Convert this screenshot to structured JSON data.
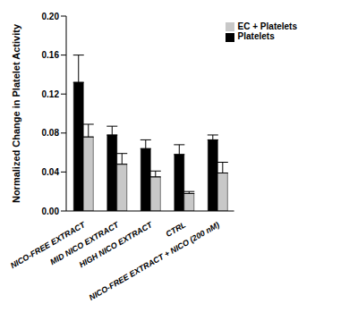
{
  "chart_data": {
    "type": "bar",
    "y_label": "Normalized Change in Platelet Activity",
    "categories": [
      "NICO-FREE EXTRACT",
      "MID NICO EXTRACT",
      "HIGH NICO EXTRACT",
      "CTRL",
      "NICO-FREE EXTRACT + NICO (200 nM)"
    ],
    "series": [
      {
        "name": "Platelets",
        "color": "#000000",
        "values": [
          0.132,
          0.078,
          0.064,
          0.058,
          0.073
        ],
        "errors": [
          0.028,
          0.009,
          0.009,
          0.01,
          0.005
        ]
      },
      {
        "name": "EC + Platelets",
        "color": "#c8c8c8",
        "values": [
          0.076,
          0.048,
          0.035,
          0.018,
          0.039
        ],
        "errors": [
          0.013,
          0.011,
          0.006,
          0.002,
          0.011
        ]
      }
    ],
    "ylim": [
      0,
      0.2
    ],
    "yticks": [
      {
        "value": 0,
        "label": "0.00"
      },
      {
        "value": 0.04,
        "label": "0.04"
      },
      {
        "value": 0.08,
        "label": "0.08"
      },
      {
        "value": 0.12,
        "label": "0.12"
      },
      {
        "value": 0.16,
        "label": "0.16"
      },
      {
        "value": 0.2,
        "label": "0.20"
      }
    ],
    "grid": false,
    "legend": "upper right"
  }
}
